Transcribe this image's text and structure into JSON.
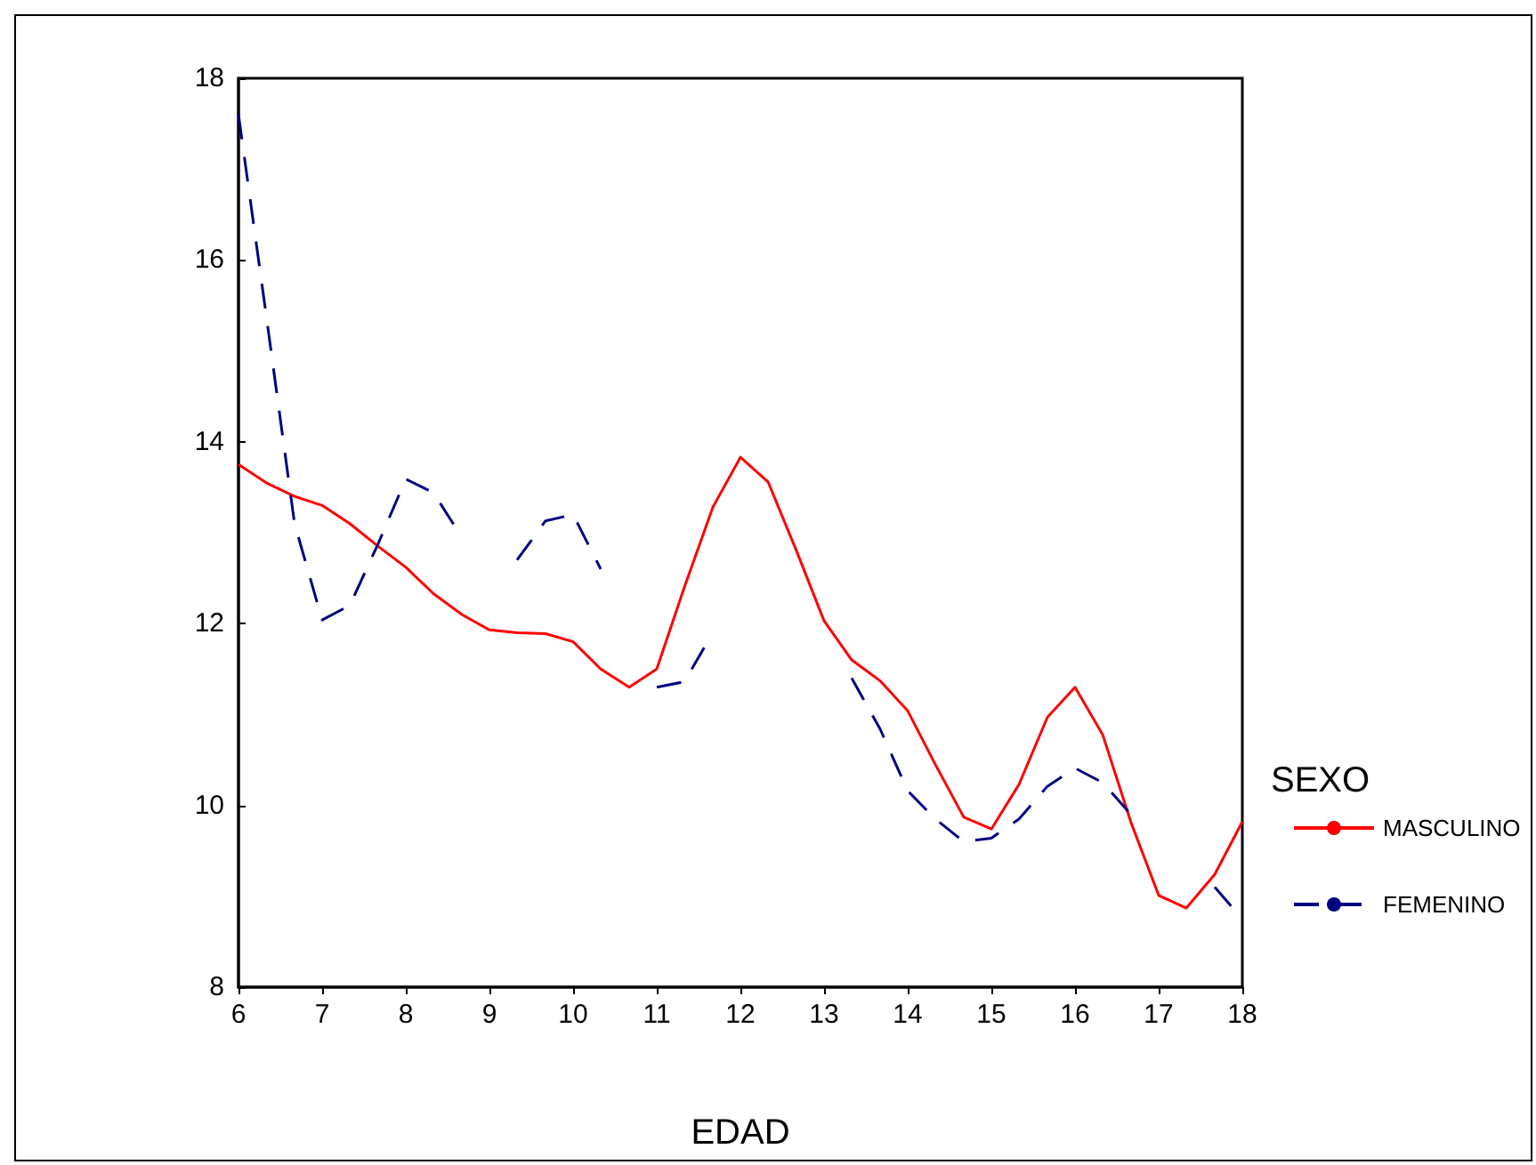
{
  "chart_data": {
    "type": "line",
    "xlabel": "EDAD",
    "legend_title": "SEXO",
    "legend": "right",
    "grid": false,
    "marker": "none",
    "x": [
      6,
      6.33,
      6.67,
      7,
      7.33,
      7.67,
      8,
      8.33,
      8.67,
      9,
      9.33,
      9.67,
      10,
      10.33,
      10.67,
      11,
      11.33,
      11.67,
      12,
      12.33,
      12.67,
      13,
      13.33,
      13.67,
      14,
      14.33,
      14.67,
      15,
      15.33,
      15.67,
      16,
      16.33,
      16.67,
      17,
      17.33,
      17.67,
      18
    ],
    "xlim": [
      6,
      18
    ],
    "xticks": [
      6,
      7,
      8,
      9,
      10,
      11,
      12,
      13,
      14,
      15,
      16,
      17,
      18
    ],
    "ylim": [
      8,
      18
    ],
    "yticks": [
      8,
      10,
      12,
      14,
      16,
      18
    ],
    "series": [
      {
        "name": "MASCULINO",
        "color": "#ff0000",
        "line_style": "solid",
        "values": [
          13.75,
          13.55,
          13.4,
          13.3,
          13.1,
          12.85,
          12.62,
          12.33,
          12.1,
          11.93,
          11.9,
          11.89,
          11.8,
          11.5,
          11.3,
          11.5,
          12.4,
          13.28,
          13.83,
          13.56,
          12.8,
          12.03,
          11.6,
          11.37,
          11.04,
          10.45,
          9.87,
          9.74,
          10.23,
          10.97,
          11.3,
          10.78,
          9.81,
          9.01,
          8.87,
          9.24,
          9.82
        ]
      },
      {
        "name": "FEMENINO",
        "color": "#000080",
        "line_style": "dashed",
        "values": [
          17.6,
          15.4,
          13.1,
          12.04,
          12.2,
          12.88,
          13.59,
          13.44,
          12.95,
          null,
          12.7,
          13.13,
          13.2,
          12.6,
          null,
          11.3,
          11.36,
          11.9,
          null,
          null,
          null,
          null,
          11.4,
          10.84,
          10.16,
          9.85,
          9.6,
          9.64,
          9.85,
          10.21,
          10.41,
          10.25,
          9.9,
          null,
          null,
          9.1,
          8.75
        ]
      }
    ]
  }
}
